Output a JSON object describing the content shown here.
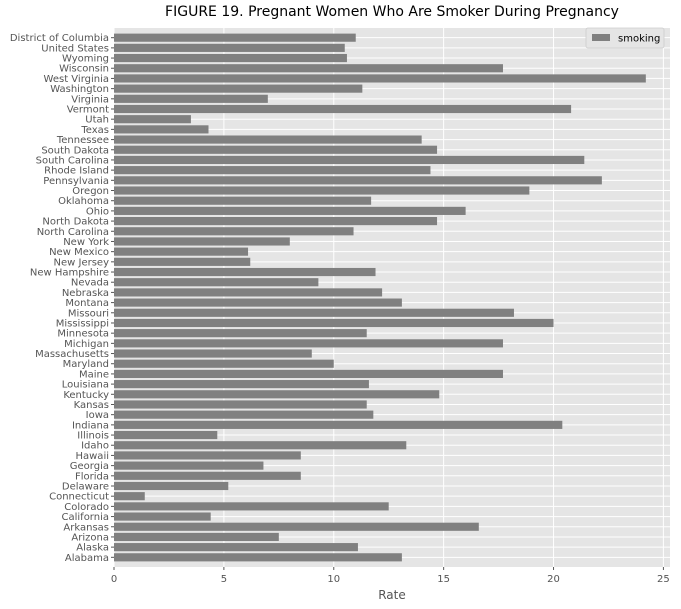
{
  "chart_data": {
    "type": "bar",
    "orientation": "horizontal",
    "title": "FIGURE 19. Pregnant Women Who Are Smoker During Pregnancy",
    "xlabel": "Rate",
    "ylabel": "",
    "xlim": [
      0,
      25.3
    ],
    "xticks": [
      "0",
      "5",
      "10",
      "15",
      "20",
      "25"
    ],
    "grid": true,
    "legend_position": "top-right",
    "colors": {
      "bar": "#808080",
      "plot_bg": "#e5e5e5",
      "grid": "#ffffff"
    },
    "series": [
      {
        "name": "smoking"
      }
    ],
    "categories": [
      "Alabama",
      "Alaska",
      "Arizona",
      "Arkansas",
      "California",
      "Colorado",
      "Connecticut",
      "Delaware",
      "Florida",
      "Georgia",
      "Hawaii",
      "Idaho",
      "Illinois",
      "Indiana",
      "Iowa",
      "Kansas",
      "Kentucky",
      "Louisiana",
      "Maine",
      "Maryland",
      "Massachusetts",
      "Michigan",
      "Minnesota",
      "Mississippi",
      "Missouri",
      "Montana",
      "Nebraska",
      "Nevada",
      "New Hampshire",
      "New Jersey",
      "New Mexico",
      "New York",
      "North Carolina",
      "North Dakota",
      "Ohio",
      "Oklahoma",
      "Oregon",
      "Pennsylvania",
      "Rhode Island",
      "South Carolina",
      "South Dakota",
      "Tennessee",
      "Texas",
      "Utah",
      "Vermont",
      "Virginia",
      "Washington",
      "West Virginia",
      "Wisconsin",
      "Wyoming",
      "United States",
      "District of Columbia"
    ],
    "values": [
      13.1,
      11.1,
      7.5,
      16.6,
      4.4,
      12.5,
      1.4,
      5.2,
      8.5,
      6.8,
      8.5,
      13.3,
      4.7,
      20.4,
      11.8,
      11.5,
      14.8,
      11.6,
      17.7,
      10.0,
      9.0,
      17.7,
      11.5,
      20.0,
      18.2,
      13.1,
      12.2,
      9.3,
      11.9,
      6.2,
      6.1,
      8.0,
      10.9,
      14.7,
      16.0,
      11.7,
      18.9,
      22.2,
      14.4,
      21.4,
      14.7,
      14.0,
      4.3,
      3.5,
      20.8,
      7.0,
      11.3,
      24.2,
      17.7,
      10.6,
      10.5,
      11.0
    ]
  }
}
